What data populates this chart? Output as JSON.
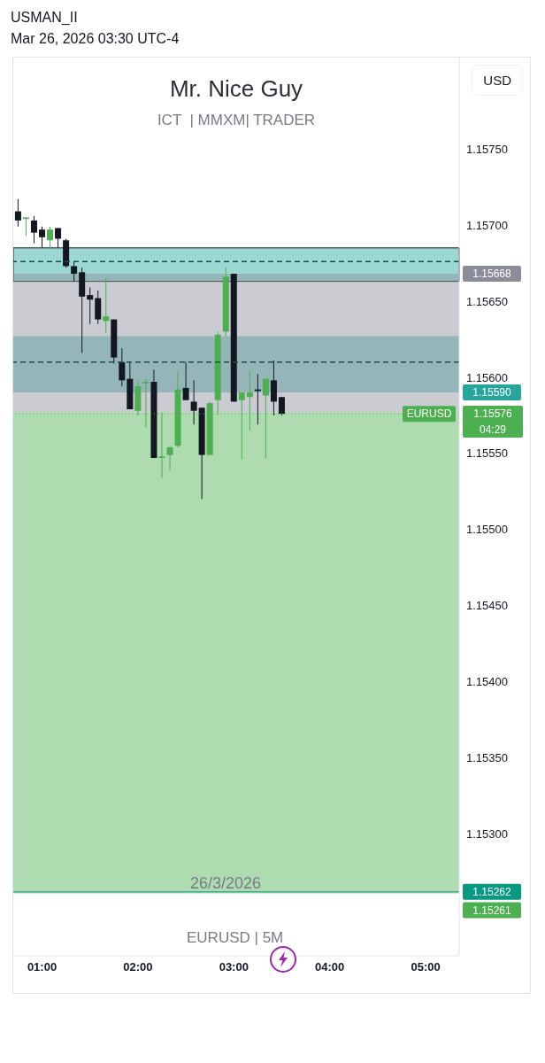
{
  "chart_data": {
    "type": "candlestick",
    "title": "Mr. Nice Guy",
    "subtitle": "ICT  | MMXM| TRADER",
    "x": [
      "2026-03-26T00:45",
      "2026-03-26T00:50",
      "2026-03-26T00:55",
      "2026-03-26T01:00",
      "2026-03-26T01:05",
      "2026-03-26T01:10",
      "2026-03-26T01:15",
      "2026-03-26T01:20",
      "2026-03-26T01:25",
      "2026-03-26T01:30",
      "2026-03-26T01:35",
      "2026-03-26T01:40",
      "2026-03-26T01:45",
      "2026-03-26T01:50",
      "2026-03-26T01:55",
      "2026-03-26T02:00",
      "2026-03-26T02:05",
      "2026-03-26T02:10",
      "2026-03-26T02:15",
      "2026-03-26T02:20",
      "2026-03-26T02:25",
      "2026-03-26T02:30",
      "2026-03-26T02:35",
      "2026-03-26T02:40",
      "2026-03-26T02:45",
      "2026-03-26T02:50",
      "2026-03-26T02:55",
      "2026-03-26T03:00",
      "2026-03-26T03:05",
      "2026-03-26T03:10",
      "2026-03-26T03:15",
      "2026-03-26T03:20",
      "2026-03-26T03:25",
      "2026-03-26T03:30"
    ],
    "ohlc": [
      [
        1.15709,
        1.15717,
        1.15699,
        1.15703
      ],
      [
        1.15704,
        1.15705,
        1.15693,
        1.15705
      ],
      [
        1.15703,
        1.15706,
        1.15688,
        1.15695
      ],
      [
        1.15697,
        1.15699,
        1.15685,
        1.15692
      ],
      [
        1.1569,
        1.15699,
        1.15684,
        1.15697
      ],
      [
        1.15698,
        1.15698,
        1.15685,
        1.15691
      ],
      [
        1.1569,
        1.15691,
        1.15672,
        1.15673
      ],
      [
        1.15673,
        1.15676,
        1.15663,
        1.15668
      ],
      [
        1.15669,
        1.15672,
        1.15616,
        1.15653
      ],
      [
        1.15654,
        1.15659,
        1.15635,
        1.15651
      ],
      [
        1.15652,
        1.15657,
        1.15635,
        1.15638
      ],
      [
        1.15637,
        1.15665,
        1.15629,
        1.1564
      ],
      [
        1.15638,
        1.15638,
        1.15609,
        1.15613
      ],
      [
        1.1561,
        1.15619,
        1.15594,
        1.15598
      ],
      [
        1.15599,
        1.1561,
        1.15579,
        1.15579
      ],
      [
        1.15578,
        1.15598,
        1.15575,
        1.15594
      ],
      [
        1.15596,
        1.15599,
        1.15567,
        1.15597
      ],
      [
        1.15597,
        1.15605,
        1.15547,
        1.15547
      ],
      [
        1.15547,
        1.15577,
        1.15534,
        1.15548
      ],
      [
        1.15549,
        1.15555,
        1.15539,
        1.15554
      ],
      [
        1.15555,
        1.15604,
        1.15554,
        1.15592
      ],
      [
        1.15593,
        1.1561,
        1.15585,
        1.15585
      ],
      [
        1.15584,
        1.15598,
        1.15569,
        1.15578
      ],
      [
        1.1558,
        1.1558,
        1.1552,
        1.15549
      ],
      [
        1.15549,
        1.15584,
        1.15549,
        1.15583
      ],
      [
        1.15585,
        1.1563,
        1.15575,
        1.15628
      ],
      [
        1.1563,
        1.15672,
        1.15627,
        1.15666
      ],
      [
        1.15668,
        1.15668,
        1.15584,
        1.15584
      ],
      [
        1.15585,
        1.1559,
        1.15546,
        1.1559
      ],
      [
        1.15587,
        1.15604,
        1.15565,
        1.1559
      ],
      [
        1.15592,
        1.15602,
        1.15569,
        1.15591
      ],
      [
        1.15588,
        1.15599,
        1.15547,
        1.15599
      ],
      [
        1.15598,
        1.15611,
        1.15575,
        1.15584
      ],
      [
        1.15587,
        1.15587,
        1.15575,
        1.15576
      ]
    ],
    "colors": [
      "#131722",
      "#4caf50",
      "#131722",
      "#131722",
      "#4caf50",
      "#131722",
      "#131722",
      "#131722",
      "#131722",
      "#131722",
      "#131722",
      "#4caf50",
      "#131722",
      "#131722",
      "#131722",
      "#4caf50",
      "#4caf50",
      "#131722",
      "#4caf50",
      "#4caf50",
      "#4caf50",
      "#131722",
      "#131722",
      "#131722",
      "#4caf50",
      "#4caf50",
      "#4caf50",
      "#131722",
      "#4caf50",
      "#4caf50",
      "#131722",
      "#4caf50",
      "#131722",
      "#131722"
    ],
    "xlim": [
      "2026-03-26T00:42",
      "2026-03-26T05:21"
    ],
    "xticks": [
      {
        "value": "2026-03-26T01:00",
        "label": "01:00"
      },
      {
        "value": "2026-03-26T02:00",
        "label": "02:00"
      },
      {
        "value": "2026-03-26T03:00",
        "label": "03:00"
      },
      {
        "value": "2026-03-26T04:00",
        "label": "04:00"
      },
      {
        "value": "2026-03-26T05:00",
        "label": "05:00"
      }
    ],
    "ylim": [
      1.1522,
      1.1581
    ],
    "yticks": [
      {
        "value": 1.153,
        "label": "1.15300"
      },
      {
        "value": 1.1535,
        "label": "1.15350"
      },
      {
        "value": 1.154,
        "label": "1.15400"
      },
      {
        "value": 1.1545,
        "label": "1.15450"
      },
      {
        "value": 1.155,
        "label": "1.15500"
      },
      {
        "value": 1.1555,
        "label": "1.15550"
      },
      {
        "value": 1.156,
        "label": "1.15600"
      },
      {
        "value": 1.1565,
        "label": "1.15650"
      },
      {
        "value": 1.157,
        "label": "1.15700"
      },
      {
        "value": 1.1575,
        "label": "1.15750"
      }
    ],
    "bands": [
      {
        "axis": "y",
        "from": 1.15663,
        "to": 1.15685,
        "color": "#26a69a"
      },
      {
        "axis": "y",
        "from": 1.15627,
        "to": 1.1559,
        "label": "1.15590",
        "color": "#26a69a"
      },
      {
        "axis": "y",
        "from": 1.15577,
        "to": 1.15668,
        "label": "1.15668",
        "color": "#8a8d99"
      },
      {
        "axis": "y",
        "from": 1.15577,
        "to": 1.15261,
        "label": "1.15261",
        "color": "#4caf50"
      }
    ],
    "ref_lines": [
      {
        "axis": "y",
        "value": 1.15676,
        "color": "#1e4d48",
        "line_style": "dashed"
      },
      {
        "axis": "y",
        "value": 1.1561,
        "color": "#1e4d48",
        "line_style": "dashed"
      },
      {
        "axis": "y",
        "value": 1.15262,
        "label": "1.15262",
        "color": "#089981",
        "line_style": "solid"
      },
      {
        "axis": "y",
        "value": 1.15576,
        "label": "EURUSD",
        "color": "#4caf50",
        "line_style": "dotted"
      }
    ],
    "annotations": [
      "USMAN_II",
      "Mar 26, 2026 03:30 UTC-4",
      "USD",
      "26/3/2026",
      "EURUSD | 5M",
      "1.15576",
      "04:29"
    ],
    "tick_labels": true
  }
}
